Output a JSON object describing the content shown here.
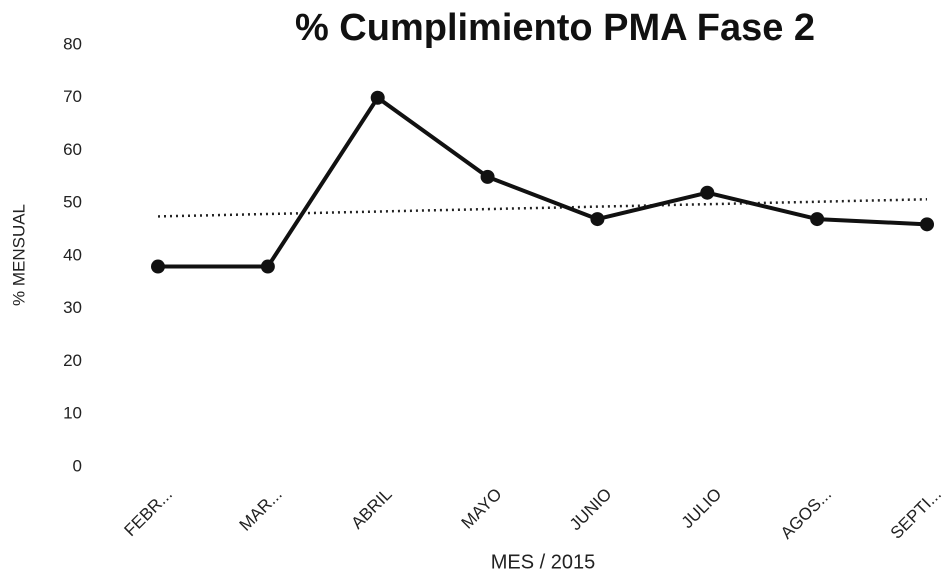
{
  "chart_data": {
    "type": "line",
    "title": "% Cumplimiento PMA Fase 2",
    "x_label": "MES / 2015",
    "y_label": "% MENSUAL",
    "categories": [
      "FEBR...",
      "MAR...",
      "ABRIL",
      "MAYO",
      "JUNIO",
      "JULIO",
      "AGOS...",
      "SEPTI..."
    ],
    "values": [
      38,
      38,
      70,
      55,
      47,
      52,
      47,
      46
    ],
    "color": "#111111",
    "trendline": [
      47.5,
      50.75
    ],
    "ylim": [
      0,
      80
    ],
    "yticks": [
      0,
      10,
      20,
      30,
      40,
      50,
      60,
      70,
      80
    ],
    "grid": false
  }
}
